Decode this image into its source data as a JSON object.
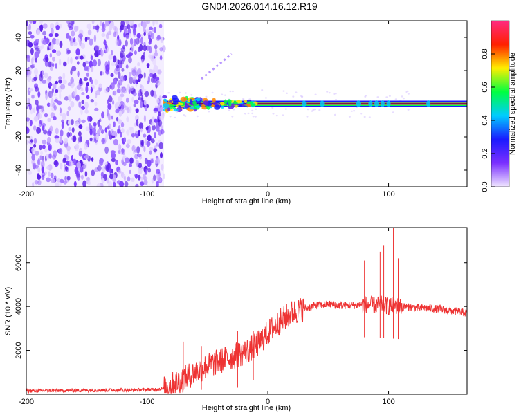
{
  "title": "GN04.2026.014.16.12.R19",
  "chart_data": [
    {
      "type": "heatmap",
      "xlabel": "Height of straight line (km)",
      "ylabel": "Frequency (Hz)",
      "xlim": [
        -200,
        165
      ],
      "ylim": [
        -50,
        50
      ],
      "xticks": [
        -200,
        -100,
        0,
        100
      ],
      "xtick_labels": [
        "-200",
        "-100",
        "0",
        "100"
      ],
      "yticks": [
        -40,
        -20,
        0,
        20,
        40
      ],
      "ytick_labels": [
        "-40",
        "-20",
        "0",
        "20",
        "40"
      ],
      "noise_region_x": [
        -200,
        -86
      ],
      "signal_line_frequency": 0,
      "signal_start_x": -86,
      "wobble_region_x": [
        -86,
        -10
      ],
      "meteor_streak": [
        [
          -55,
          15
        ],
        [
          -30,
          30
        ]
      ],
      "colorbar": {
        "label": "Normalized spectral amplitude",
        "range": [
          0,
          1
        ],
        "ticks": [
          0.0,
          0.2,
          0.4,
          0.6,
          0.8
        ],
        "tick_labels": [
          "0.0",
          "0.2",
          "0.4",
          "0.6",
          "0.8"
        ],
        "colors": [
          "#f0e6ff",
          "#7b2fff",
          "#1a1aff",
          "#00ccff",
          "#00ff40",
          "#ffee00",
          "#ff2000",
          "#ff2a80"
        ]
      }
    },
    {
      "type": "line",
      "xlabel": "Height of straight line (km)",
      "ylabel": "SNR (10 * v/v)",
      "xlim": [
        -200,
        165
      ],
      "ylim": [
        0,
        7600
      ],
      "xticks": [
        -200,
        -100,
        0,
        100
      ],
      "xtick_labels": [
        "-200",
        "-100",
        "0",
        "100"
      ],
      "yticks": [
        2000,
        4000,
        6000
      ],
      "ytick_labels": [
        "2000",
        "4000",
        "6000"
      ],
      "color": "#ee3333",
      "series": [
        {
          "name": "SNR",
          "x": [
            -200,
            -150,
            -100,
            -86,
            -80,
            -70,
            -60,
            -50,
            -40,
            -30,
            -20,
            -10,
            0,
            10,
            20,
            30,
            40,
            50,
            60,
            70,
            80,
            90,
            95,
            100,
            105,
            110,
            120,
            140,
            165
          ],
          "y": [
            150,
            180,
            200,
            250,
            400,
            700,
            1000,
            1300,
            1500,
            1700,
            1900,
            2200,
            2800,
            3300,
            3700,
            3900,
            4050,
            4100,
            4050,
            4050,
            4100,
            4050,
            4100,
            4000,
            4050,
            4000,
            3950,
            3900,
            3700
          ]
        }
      ],
      "spikes": [
        [
          -70,
          2400
        ],
        [
          -55,
          2200
        ],
        [
          -25,
          2900
        ],
        [
          -12,
          2900
        ],
        [
          80,
          6100
        ],
        [
          93,
          6500
        ],
        [
          96,
          6800
        ],
        [
          104,
          7600
        ],
        [
          108,
          6200
        ]
      ]
    }
  ]
}
